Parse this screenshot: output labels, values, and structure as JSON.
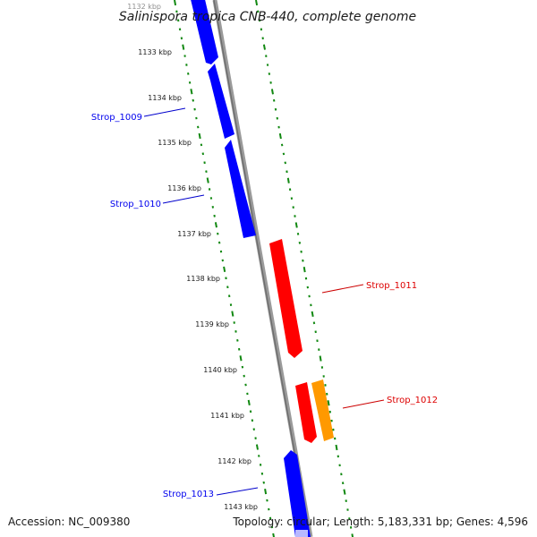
{
  "title": "Salinispora tropica CNB-440, complete genome",
  "footer": {
    "accession": "Accession: NC_009380",
    "summary": "Topology: circular; Length: 5,183,331 bp; Genes: 4,596"
  },
  "ticks": [
    "1132 kbp",
    "1133 kbp",
    "1134 kbp",
    "1135 kbp",
    "1136 kbp",
    "1137 kbp",
    "1138 kbp",
    "1139 kbp",
    "1140 kbp",
    "1141 kbp",
    "1142 kbp",
    "1143 kbp"
  ],
  "genes": [
    {
      "label": "Strop_1009",
      "color": "#0000ee"
    },
    {
      "label": "Strop_1010",
      "color": "#0000ee"
    },
    {
      "label": "Strop_1011",
      "color": "#dd0000"
    },
    {
      "label": "Strop_1012",
      "color": "#dd0000"
    },
    {
      "label": "Strop_1013",
      "color": "#0000ee"
    }
  ],
  "colors": {
    "forward_gene": "#ff0000",
    "reverse_gene": "#0000ff",
    "pseudo_gene": "#ff9900",
    "backbone": "#808080",
    "dotted_track": "#118811"
  }
}
